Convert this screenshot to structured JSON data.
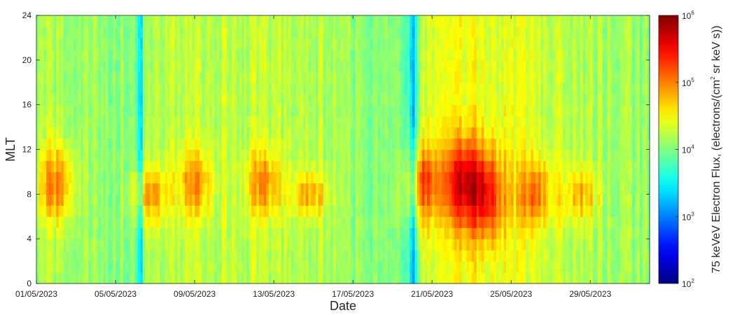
{
  "chart_data": {
    "type": "heatmap",
    "title": "",
    "xlabel": "Date",
    "ylabel": "MLT",
    "x_range_days": [
      0,
      31
    ],
    "x_start": "01/05/2023",
    "x_ticks": [
      "01/05/2023",
      "05/05/2023",
      "09/05/2023",
      "13/05/2023",
      "17/05/2023",
      "21/05/2023",
      "25/05/2023",
      "29/05/2023"
    ],
    "ylim": [
      0,
      24
    ],
    "y_ticks": [
      0,
      4,
      8,
      12,
      16,
      20,
      24
    ],
    "y_bin_hours": 1,
    "colorscale": "jet",
    "color_scale_type": "log",
    "clim": [
      100,
      1000000
    ],
    "colorbar": {
      "label": "75 keVeV Electron Flux, (electrons/(cm",
      "label_sup": "2",
      "label_tail": " sr keV s))",
      "ticks": [
        {
          "base": "10",
          "exp": "2",
          "value": 100
        },
        {
          "base": "10",
          "exp": "3",
          "value": 1000
        },
        {
          "base": "10",
          "exp": "4",
          "value": 10000
        },
        {
          "base": "10",
          "exp": "5",
          "value": 100000
        },
        {
          "base": "10",
          "exp": "6",
          "value": 1000000
        }
      ]
    },
    "log10_flux_model": {
      "background": 4.0,
      "baseline_trend": [
        [
          0,
          4.15
        ],
        [
          5,
          4.05
        ],
        [
          5.3,
          3.75
        ],
        [
          5.6,
          4.2
        ],
        [
          9,
          4.25
        ],
        [
          14,
          4.2
        ],
        [
          18,
          4.0
        ],
        [
          19.2,
          3.7
        ],
        [
          19.6,
          4.35
        ],
        [
          22,
          4.45
        ],
        [
          27,
          4.25
        ],
        [
          31,
          4.05
        ]
      ],
      "dayside_enhancement_mlt_range": [
        5,
        14
      ],
      "enhancement_peaks": [
        {
          "day": 1.0,
          "amplitude": 0.85,
          "mlt_center": 9,
          "mlt_width": 3.5
        },
        {
          "day": 5.7,
          "amplitude": 0.75,
          "mlt_center": 8,
          "mlt_width": 2.5
        },
        {
          "day": 8.0,
          "amplitude": 0.7,
          "mlt_center": 9,
          "mlt_width": 3
        },
        {
          "day": 11.5,
          "amplitude": 0.7,
          "mlt_center": 9,
          "mlt_width": 3
        },
        {
          "day": 13.8,
          "amplitude": 0.65,
          "mlt_center": 8,
          "mlt_width": 2
        },
        {
          "day": 19.5,
          "amplitude": 0.95,
          "mlt_center": 9,
          "mlt_width": 3.5
        },
        {
          "day": 21.5,
          "amplitude": 1.15,
          "mlt_center": 9,
          "mlt_width": 4
        },
        {
          "day": 22.8,
          "amplitude": 1.05,
          "mlt_center": 8,
          "mlt_width": 4
        },
        {
          "day": 25.2,
          "amplitude": 0.75,
          "mlt_center": 8,
          "mlt_width": 3
        },
        {
          "day": 27.5,
          "amplitude": 0.6,
          "mlt_center": 8,
          "mlt_width": 2.5
        }
      ],
      "dropouts": [
        {
          "day": 5.25,
          "depth": 0.7
        },
        {
          "day": 19.05,
          "depth": 0.6
        }
      ]
    }
  }
}
